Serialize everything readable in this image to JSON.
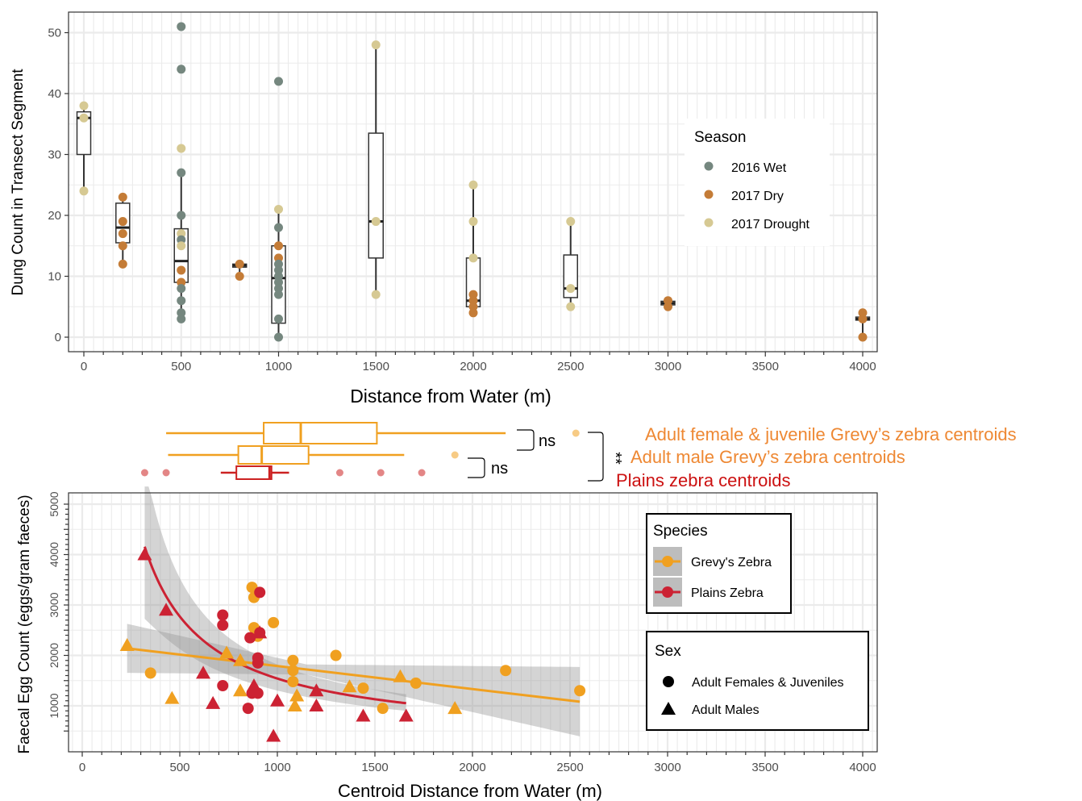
{
  "chart_data": [
    {
      "type": "box+scatter",
      "xlabel": "Distance from Water (m)",
      "ylabel": "Dung Count in Transect Segment",
      "xlim": [
        -80,
        4080
      ],
      "ylim": [
        -2,
        52
      ],
      "x_ticks": [
        0,
        500,
        1000,
        1500,
        2000,
        2500,
        3000,
        3500,
        4000
      ],
      "x_tick_labels": [
        "0",
        "500",
        "1000",
        "1500",
        "2000",
        "2500",
        "3000",
        "3500",
        "4000"
      ],
      "y_ticks": [
        0,
        10,
        20,
        30,
        40,
        50
      ],
      "y_tick_labels": [
        "0",
        "10",
        "20",
        "30",
        "40",
        "50"
      ],
      "grid": true,
      "legend": {
        "title": "Season",
        "placement": "right",
        "items": [
          {
            "label": "2016 Wet",
            "color": "#75877f"
          },
          {
            "label": "2017 Dry",
            "color": "#c47c37"
          },
          {
            "label": "2017 Drought",
            "color": "#d6c993"
          }
        ]
      },
      "boxes": [
        {
          "x": 0,
          "q1": 30,
          "median": 36,
          "q3": 37,
          "lo": 24,
          "hi": 38
        },
        {
          "x": 200,
          "q1": 15.5,
          "median": 18,
          "q3": 22,
          "lo": 12,
          "hi": 23
        },
        {
          "x": 500,
          "q1": 9,
          "median": 12.5,
          "q3": 17.8,
          "lo": 3,
          "hi": 27
        },
        {
          "x": 800,
          "q1": 11.5,
          "median": 11.8,
          "q3": 12,
          "lo": 10,
          "hi": 12
        },
        {
          "x": 1000,
          "q1": 2.3,
          "median": 9.7,
          "q3": 15,
          "lo": 0,
          "hi": 21
        },
        {
          "x": 1500,
          "q1": 13,
          "median": 19,
          "q3": 33.5,
          "lo": 7,
          "hi": 48
        },
        {
          "x": 2000,
          "q1": 5,
          "median": 6,
          "q3": 13,
          "lo": 4,
          "hi": 25
        },
        {
          "x": 2500,
          "q1": 6.5,
          "median": 8,
          "q3": 13.5,
          "lo": 5,
          "hi": 19
        },
        {
          "x": 3000,
          "q1": 5.3,
          "median": 5.6,
          "q3": 5.9,
          "lo": 5,
          "hi": 6
        },
        {
          "x": 4000,
          "q1": 2.8,
          "median": 3,
          "q3": 3.3,
          "lo": 0,
          "hi": 4
        }
      ],
      "points": [
        {
          "x": 0,
          "y": 38,
          "season": "2017 Drought"
        },
        {
          "x": 0,
          "y": 36,
          "season": "2017 Drought"
        },
        {
          "x": 0,
          "y": 24,
          "season": "2017 Drought"
        },
        {
          "x": 200,
          "y": 23,
          "season": "2017 Dry"
        },
        {
          "x": 200,
          "y": 19,
          "season": "2017 Dry"
        },
        {
          "x": 200,
          "y": 17,
          "season": "2017 Dry"
        },
        {
          "x": 200,
          "y": 15,
          "season": "2017 Dry"
        },
        {
          "x": 200,
          "y": 12,
          "season": "2017 Dry"
        },
        {
          "x": 500,
          "y": 51,
          "season": "2016 Wet"
        },
        {
          "x": 500,
          "y": 44,
          "season": "2016 Wet"
        },
        {
          "x": 500,
          "y": 31,
          "season": "2017 Drought"
        },
        {
          "x": 500,
          "y": 27,
          "season": "2016 Wet"
        },
        {
          "x": 500,
          "y": 20,
          "season": "2016 Wet"
        },
        {
          "x": 500,
          "y": 17,
          "season": "2017 Drought"
        },
        {
          "x": 500,
          "y": 16,
          "season": "2016 Wet"
        },
        {
          "x": 500,
          "y": 15,
          "season": "2017 Drought"
        },
        {
          "x": 500,
          "y": 11,
          "season": "2017 Dry"
        },
        {
          "x": 500,
          "y": 9,
          "season": "2017 Dry"
        },
        {
          "x": 500,
          "y": 8,
          "season": "2016 Wet"
        },
        {
          "x": 500,
          "y": 6,
          "season": "2016 Wet"
        },
        {
          "x": 500,
          "y": 4,
          "season": "2016 Wet"
        },
        {
          "x": 500,
          "y": 3,
          "season": "2016 Wet"
        },
        {
          "x": 800,
          "y": 12,
          "season": "2017 Dry"
        },
        {
          "x": 800,
          "y": 10,
          "season": "2017 Dry"
        },
        {
          "x": 1000,
          "y": 42,
          "season": "2016 Wet"
        },
        {
          "x": 1000,
          "y": 21,
          "season": "2017 Drought"
        },
        {
          "x": 1000,
          "y": 18,
          "season": "2016 Wet"
        },
        {
          "x": 1000,
          "y": 15,
          "season": "2017 Dry"
        },
        {
          "x": 1000,
          "y": 13,
          "season": "2017 Dry"
        },
        {
          "x": 1000,
          "y": 12,
          "season": "2016 Wet"
        },
        {
          "x": 1000,
          "y": 11,
          "season": "2016 Wet"
        },
        {
          "x": 1000,
          "y": 10,
          "season": "2016 Wet"
        },
        {
          "x": 1000,
          "y": 9,
          "season": "2016 Wet"
        },
        {
          "x": 1000,
          "y": 8,
          "season": "2016 Wet"
        },
        {
          "x": 1000,
          "y": 7,
          "season": "2016 Wet"
        },
        {
          "x": 1000,
          "y": 3,
          "season": "2016 Wet"
        },
        {
          "x": 1000,
          "y": 0,
          "season": "2016 Wet"
        },
        {
          "x": 1500,
          "y": 48,
          "season": "2017 Drought"
        },
        {
          "x": 1500,
          "y": 19,
          "season": "2017 Drought"
        },
        {
          "x": 1500,
          "y": 7,
          "season": "2017 Drought"
        },
        {
          "x": 2000,
          "y": 25,
          "season": "2017 Drought"
        },
        {
          "x": 2000,
          "y": 19,
          "season": "2017 Drought"
        },
        {
          "x": 2000,
          "y": 13,
          "season": "2017 Drought"
        },
        {
          "x": 2000,
          "y": 7,
          "season": "2017 Dry"
        },
        {
          "x": 2000,
          "y": 6,
          "season": "2017 Dry"
        },
        {
          "x": 2000,
          "y": 5,
          "season": "2017 Dry"
        },
        {
          "x": 2000,
          "y": 4,
          "season": "2017 Dry"
        },
        {
          "x": 2500,
          "y": 19,
          "season": "2017 Drought"
        },
        {
          "x": 2500,
          "y": 8,
          "season": "2017 Drought"
        },
        {
          "x": 2500,
          "y": 5,
          "season": "2017 Drought"
        },
        {
          "x": 3000,
          "y": 6,
          "season": "2017 Dry"
        },
        {
          "x": 3000,
          "y": 5,
          "season": "2017 Dry"
        },
        {
          "x": 4000,
          "y": 4,
          "season": "2017 Dry"
        },
        {
          "x": 4000,
          "y": 3,
          "season": "2017 Dry"
        },
        {
          "x": 4000,
          "y": 0,
          "season": "2017 Dry"
        }
      ]
    },
    {
      "type": "box",
      "orientation": "horizontal",
      "boxes": [
        {
          "group": "Adult female & juvenile",
          "color": "#f0a020",
          "lo": 430,
          "q1": 930,
          "median": 1120,
          "q3": 1510,
          "hi": 2170,
          "outliers": [
            2530
          ]
        },
        {
          "group": "Adult male",
          "color": "#f0a020",
          "lo": 440,
          "q1": 800,
          "median": 920,
          "q3": 1160,
          "hi": 1650,
          "outliers": [
            1910
          ]
        },
        {
          "group": "Plains",
          "color": "#cc2222",
          "lo": 710,
          "q1": 790,
          "median": 960,
          "q3": 970,
          "hi": 1060,
          "outliers": [
            320,
            430,
            1320,
            1530,
            1740
          ]
        }
      ],
      "labels": [
        {
          "text": "Adult female & juvenile Grevy’s zebra centroids",
          "color": "#ee8833"
        },
        {
          "text": "Adult male Grevy’s zebra centroids",
          "color": "#ee8833"
        },
        {
          "text": "Plains zebra centroids",
          "color": "#cc1111"
        }
      ],
      "comparisons": [
        {
          "text": "ns",
          "pair": [
            "Adult female & juvenile",
            "Adult male"
          ]
        },
        {
          "text": "ns",
          "pair": [
            "Adult male",
            "Plains"
          ]
        },
        {
          "text": "**",
          "pair": [
            "Adult female & juvenile",
            "Plains"
          ]
        }
      ]
    },
    {
      "type": "scatter",
      "xlabel": "Centroid Distance from Water (m)",
      "ylabel": "Faecal Egg Count (eggs/gram faeces)",
      "xlim": [
        -80,
        4080
      ],
      "ylim": [
        200,
        5200
      ],
      "x_ticks": [
        0,
        500,
        1000,
        1500,
        2000,
        2500,
        3000,
        3500,
        4000
      ],
      "x_tick_labels": [
        "0",
        "500",
        "1000",
        "1500",
        "2000",
        "2500",
        "3000",
        "3500",
        "4000"
      ],
      "y_ticks": [
        1000,
        2000,
        3000,
        4000,
        5000
      ],
      "y_tick_labels": [
        "1000",
        "2000",
        "3000",
        "4000",
        "5000"
      ],
      "grid": true,
      "legends": [
        {
          "title": "Species",
          "placement": "right",
          "items": [
            {
              "label": "Grevy's Zebra",
              "color": "#f0a020"
            },
            {
              "label": "Plains Zebra",
              "color": "#cc2233"
            }
          ]
        },
        {
          "title": "Sex",
          "placement": "right",
          "items": [
            {
              "label": "Adult Females & Juveniles",
              "shape": "circle"
            },
            {
              "label": "Adult Males",
              "shape": "triangle"
            }
          ]
        }
      ],
      "series": [
        {
          "name": "Grevy's Zebra",
          "color": "#f0a020",
          "points": [
            {
              "x": 350,
              "y": 1650,
              "sex": "F"
            },
            {
              "x": 870,
              "y": 3350,
              "sex": "F"
            },
            {
              "x": 880,
              "y": 3150,
              "sex": "F"
            },
            {
              "x": 880,
              "y": 2550,
              "sex": "F"
            },
            {
              "x": 900,
              "y": 2380,
              "sex": "F"
            },
            {
              "x": 980,
              "y": 2650,
              "sex": "F"
            },
            {
              "x": 1080,
              "y": 1900,
              "sex": "F"
            },
            {
              "x": 1080,
              "y": 1700,
              "sex": "F"
            },
            {
              "x": 1080,
              "y": 1480,
              "sex": "F"
            },
            {
              "x": 1300,
              "y": 2000,
              "sex": "F"
            },
            {
              "x": 1440,
              "y": 1350,
              "sex": "F"
            },
            {
              "x": 1540,
              "y": 950,
              "sex": "F"
            },
            {
              "x": 1710,
              "y": 1450,
              "sex": "F"
            },
            {
              "x": 2170,
              "y": 1700,
              "sex": "F"
            },
            {
              "x": 2550,
              "y": 1300,
              "sex": "F"
            },
            {
              "x": 230,
              "y": 2200,
              "sex": "M"
            },
            {
              "x": 460,
              "y": 1150,
              "sex": "M"
            },
            {
              "x": 740,
              "y": 2050,
              "sex": "M"
            },
            {
              "x": 810,
              "y": 1300,
              "sex": "M"
            },
            {
              "x": 810,
              "y": 1900,
              "sex": "M"
            },
            {
              "x": 1090,
              "y": 1000,
              "sex": "M"
            },
            {
              "x": 1100,
              "y": 1200,
              "sex": "M"
            },
            {
              "x": 1370,
              "y": 1380,
              "sex": "M"
            },
            {
              "x": 1630,
              "y": 1580,
              "sex": "M"
            },
            {
              "x": 1910,
              "y": 950,
              "sex": "M"
            }
          ]
        },
        {
          "name": "Plains Zebra",
          "color": "#cc2233",
          "points": [
            {
              "x": 720,
              "y": 2800,
              "sex": "F"
            },
            {
              "x": 720,
              "y": 2600,
              "sex": "F"
            },
            {
              "x": 720,
              "y": 1400,
              "sex": "F"
            },
            {
              "x": 850,
              "y": 950,
              "sex": "F"
            },
            {
              "x": 860,
              "y": 2350,
              "sex": "F"
            },
            {
              "x": 870,
              "y": 1250,
              "sex": "F"
            },
            {
              "x": 900,
              "y": 1950,
              "sex": "F"
            },
            {
              "x": 900,
              "y": 1850,
              "sex": "F"
            },
            {
              "x": 900,
              "y": 1250,
              "sex": "F"
            },
            {
              "x": 910,
              "y": 3250,
              "sex": "F"
            },
            {
              "x": 910,
              "y": 2450,
              "sex": "F"
            },
            {
              "x": 320,
              "y": 4000,
              "sex": "M"
            },
            {
              "x": 430,
              "y": 2900,
              "sex": "M"
            },
            {
              "x": 620,
              "y": 1650,
              "sex": "M"
            },
            {
              "x": 670,
              "y": 1050,
              "sex": "M"
            },
            {
              "x": 880,
              "y": 1400,
              "sex": "M"
            },
            {
              "x": 910,
              "y": 2450,
              "sex": "M"
            },
            {
              "x": 980,
              "y": 400,
              "sex": "M"
            },
            {
              "x": 1000,
              "y": 1100,
              "sex": "M"
            },
            {
              "x": 1200,
              "y": 1300,
              "sex": "M"
            },
            {
              "x": 1200,
              "y": 1000,
              "sex": "M"
            },
            {
              "x": 1440,
              "y": 800,
              "sex": "M"
            },
            {
              "x": 1660,
              "y": 800,
              "sex": "M"
            }
          ]
        }
      ]
    }
  ]
}
